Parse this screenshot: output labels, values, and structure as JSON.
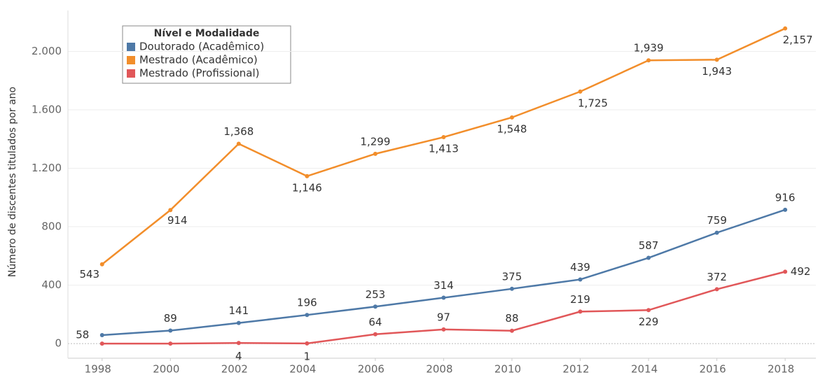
{
  "chart_data": {
    "type": "line",
    "y_label": "Número de discentes titulados por ano",
    "legend_title": "Nível e Modalidade",
    "x": [
      1998,
      2000,
      2002,
      2004,
      2006,
      2008,
      2010,
      2012,
      2014,
      2016,
      2018
    ],
    "xlim": [
      1997,
      2018.9
    ],
    "xticks": [
      1998,
      2000,
      2002,
      2004,
      2006,
      2008,
      2010,
      2012,
      2014,
      2016,
      2018
    ],
    "ylim": [
      -100,
      2280
    ],
    "yticks": [
      0,
      400,
      800,
      {
        "value": 1200,
        "label": "1.200"
      },
      {
        "value": 1600,
        "label": "1.600"
      },
      {
        "value": 2000,
        "label": "2.000"
      }
    ],
    "grid": true,
    "series": [
      {
        "name": "Doutorado (Acadêmico)",
        "color": "#4e79a7",
        "values": [
          58,
          89,
          141,
          196,
          253,
          314,
          375,
          439,
          587,
          759,
          916
        ]
      },
      {
        "name": "Mestrado (Acadêmico)",
        "color": "#f28e2b",
        "values": [
          543,
          914,
          1368,
          1146,
          1299,
          1413,
          1548,
          1725,
          1939,
          1943,
          2157
        ],
        "value_labels": [
          "543",
          "914",
          "1,368",
          "1,146",
          "1,299",
          "1,413",
          "1,548",
          "1,725",
          "1,939",
          "1,943",
          "2,157"
        ]
      },
      {
        "name": "Mestrado (Profissional)",
        "color": "#e15759",
        "values": [
          0,
          0,
          4,
          1,
          64,
          97,
          88,
          219,
          229,
          372,
          492
        ],
        "value_labels": [
          null,
          null,
          "4",
          "1",
          "64",
          "97",
          "88",
          "219",
          "229",
          "372",
          "492"
        ]
      }
    ]
  }
}
